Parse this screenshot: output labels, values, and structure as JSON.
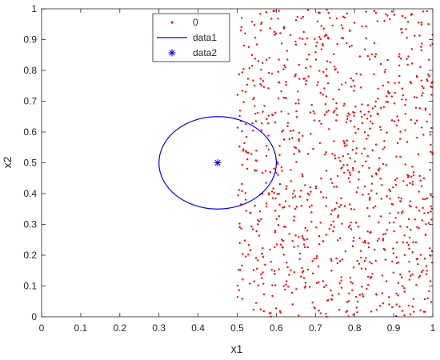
{
  "chart_data": {
    "type": "scatter",
    "title": "",
    "xlabel": "x1",
    "ylabel": "x2",
    "xlim": [
      0,
      1
    ],
    "ylim": [
      0,
      1
    ],
    "xticks": [
      "0",
      "0.1",
      "0.2",
      "0.3",
      "0.4",
      "0.5",
      "0.6",
      "0.7",
      "0.8",
      "0.9",
      "1"
    ],
    "yticks": [
      "0",
      "0.1",
      "0.2",
      "0.3",
      "0.4",
      "0.5",
      "0.6",
      "0.7",
      "0.8",
      "0.9",
      "1"
    ],
    "grid": false,
    "legend_location": "top",
    "series": [
      {
        "name": "0",
        "kind": "points",
        "color": "#ff0000",
        "marker": "dot",
        "count": 1000,
        "x_range": [
          0.5,
          1.0
        ],
        "y_range": [
          0.0,
          1.0
        ]
      },
      {
        "name": "data1",
        "kind": "ellipse",
        "color": "#0000ff",
        "center": [
          0.45,
          0.5
        ],
        "x_radius": 0.15,
        "y_radius": 0.15
      },
      {
        "name": "data2",
        "kind": "marker",
        "color": "#0000ff",
        "marker": "asterisk",
        "x": [
          0.45
        ],
        "y": [
          0.5
        ]
      }
    ]
  }
}
